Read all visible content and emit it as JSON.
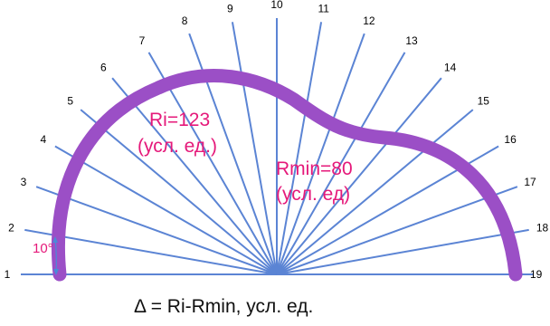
{
  "diagram": {
    "ray_labels": [
      "1",
      "2",
      "3",
      "4",
      "5",
      "6",
      "7",
      "8",
      "9",
      "10",
      "11",
      "12",
      "13",
      "14",
      "15",
      "16",
      "17",
      "18",
      "19"
    ],
    "angle_step_label": "10°",
    "ri_label_line1": "Ri=123",
    "ri_label_line2": "(усл. ед.)",
    "rmin_label_line1": "Rmin=80",
    "rmin_label_line2": "(усл. ед)",
    "formula": "Δ = Ri-Rmin,  усл. ед."
  },
  "colors": {
    "rays": "#5b84d4",
    "profile": "#9b4fc6",
    "label_pink": "#e5197a",
    "angle_marker": "#4a8ad8"
  }
}
